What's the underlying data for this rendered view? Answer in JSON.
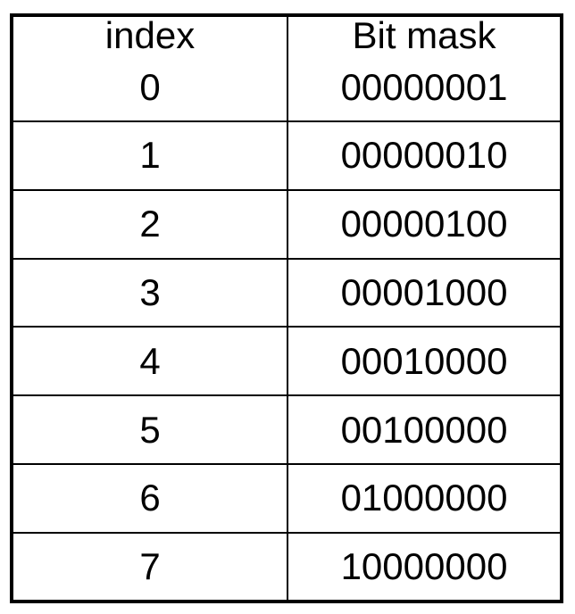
{
  "table": {
    "headers": [
      "index",
      "Bit mask"
    ],
    "rows": [
      [
        "0",
        "00000001"
      ],
      [
        "1",
        "00000010"
      ],
      [
        "2",
        "00000100"
      ],
      [
        "3",
        "00001000"
      ],
      [
        "4",
        "00010000"
      ],
      [
        "5",
        "00100000"
      ],
      [
        "6",
        "01000000"
      ],
      [
        "7",
        "10000000"
      ]
    ]
  }
}
